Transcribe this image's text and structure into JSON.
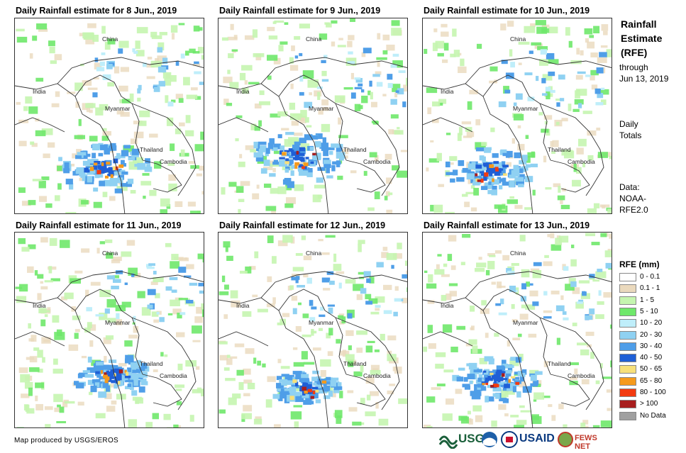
{
  "panels": [
    {
      "title": "Daily Rainfall estimate for 8 Jun., 2019"
    },
    {
      "title": "Daily Rainfall estimate for 9 Jun., 2019"
    },
    {
      "title": "Daily Rainfall estimate for 10 Jun., 2019"
    },
    {
      "title": "Daily Rainfall estimate for 11 Jun., 2019"
    },
    {
      "title": "Daily Rainfall estimate for 12 Jun., 2019"
    },
    {
      "title": "Daily Rainfall estimate for 13 Jun., 2019"
    }
  ],
  "map_labels": {
    "china": "China",
    "india": "India",
    "myanmar": "Myanmar",
    "thailand": "Thailand",
    "cambodia": "Cambodia"
  },
  "sidebar": {
    "heading_line1": "Rainfall",
    "heading_line2": "Estimate",
    "heading_line3": "(RFE)",
    "through_line1": "through",
    "through_line2": "Jun 13, 2019",
    "daily_line1": "Daily",
    "daily_line2": "Totals",
    "data_line1": "Data:",
    "data_line2": "NOAA-",
    "data_line3": "RFE2.0"
  },
  "legend": {
    "title": "RFE (mm)",
    "items": [
      {
        "label": "0 - 0.1",
        "color": "#ffffff"
      },
      {
        "label": "0.1 - 1",
        "color": "#ead9bd"
      },
      {
        "label": "1 - 5",
        "color": "#c5f5b0"
      },
      {
        "label": "5 - 10",
        "color": "#6fe86a"
      },
      {
        "label": "10 - 20",
        "color": "#bfeefa"
      },
      {
        "label": "20 - 30",
        "color": "#8fd1f2"
      },
      {
        "label": "30 - 40",
        "color": "#4f9ee8"
      },
      {
        "label": "40 - 50",
        "color": "#1f5fd6"
      },
      {
        "label": "50 - 65",
        "color": "#f7e07a"
      },
      {
        "label": "65 - 80",
        "color": "#f59a1c"
      },
      {
        "label": "80 - 100",
        "color": "#f23b10"
      },
      {
        "label": "> 100",
        "color": "#a81e1e"
      },
      {
        "label": "No Data",
        "color": "#a0a0a0"
      }
    ]
  },
  "credit": "Map produced by USGS/EROS",
  "logos": {
    "usgs": "USGS",
    "usaid": "USAID",
    "fewsnet": "FEWS NET"
  }
}
